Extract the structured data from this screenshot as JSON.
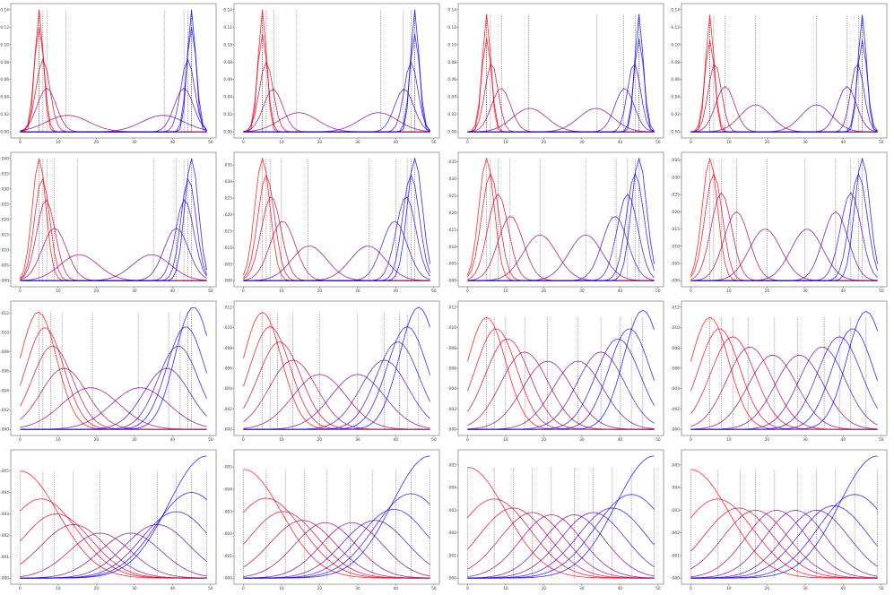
{
  "chart_data": [
    {
      "type": "line",
      "xticks": [
        "0",
        "10",
        "20",
        "30",
        "40",
        "50"
      ],
      "yticks": [
        "0.00",
        "0.02",
        "0.04",
        "0.06",
        "0.08",
        "0.10",
        "0.12",
        "0.14"
      ],
      "ylim": [
        0,
        0.14
      ],
      "means": [
        5,
        5,
        6,
        7,
        12.5,
        37.5,
        43,
        44,
        45,
        45
      ],
      "sigmas": [
        1.1,
        1.3,
        1.8,
        2.5,
        5.5,
        5.5,
        2.5,
        1.8,
        1.3,
        1.1
      ],
      "peaks": [
        0.14,
        0.12,
        0.083,
        0.05,
        0.019,
        0.019,
        0.05,
        0.083,
        0.12,
        0.14
      ],
      "vlines": [
        5,
        5,
        6,
        7,
        12,
        38,
        43,
        44,
        45,
        45
      ]
    },
    {
      "type": "line",
      "xticks": [
        "0",
        "10",
        "20",
        "30",
        "40",
        "50"
      ],
      "yticks": [
        "0.00",
        "0.02",
        "0.04",
        "0.06",
        "0.08",
        "0.10",
        "0.12",
        "0.14"
      ],
      "ylim": [
        0,
        0.14
      ],
      "means": [
        5,
        5,
        6,
        7.8,
        14.5,
        35.5,
        42.2,
        44,
        45,
        45
      ],
      "sigmas": [
        1.1,
        1.3,
        1.8,
        2.5,
        5,
        5,
        2.5,
        1.8,
        1.3,
        1.1
      ],
      "peaks": [
        0.14,
        0.112,
        0.08,
        0.049,
        0.022,
        0.022,
        0.049,
        0.08,
        0.112,
        0.14
      ],
      "vlines": [
        5,
        5,
        6,
        8,
        14,
        36,
        42,
        44,
        45,
        45
      ]
    },
    {
      "type": "line",
      "xticks": [
        "0",
        "10",
        "20",
        "30",
        "40",
        "50"
      ],
      "yticks": [
        "0.00",
        "0.02",
        "0.04",
        "0.06",
        "0.08",
        "0.10",
        "0.12",
        "0.14"
      ],
      "ylim": [
        0,
        0.14
      ],
      "means": [
        5,
        5,
        6.3,
        8.8,
        16.3,
        33.7,
        41.2,
        43.7,
        45,
        45
      ],
      "sigmas": [
        1.1,
        1.3,
        1.7,
        2.5,
        4.5,
        4.5,
        2.5,
        1.7,
        1.3,
        1.1
      ],
      "peaks": [
        0.135,
        0.107,
        0.079,
        0.05,
        0.027,
        0.027,
        0.05,
        0.079,
        0.107,
        0.135
      ],
      "vlines": [
        5,
        5,
        6,
        9,
        16,
        34,
        41,
        44,
        45,
        45
      ]
    },
    {
      "type": "line",
      "xticks": [
        "0",
        "10",
        "20",
        "30",
        "40",
        "50"
      ],
      "yticks": [
        "0.00",
        "0.02",
        "0.04",
        "0.06",
        "0.08",
        "0.10",
        "0.12",
        "0.14"
      ],
      "ylim": [
        0,
        0.14
      ],
      "means": [
        5,
        5,
        6.3,
        9,
        17,
        33,
        41,
        43.7,
        45,
        45
      ],
      "sigmas": [
        1.1,
        1.3,
        1.7,
        2.5,
        4,
        4,
        2.5,
        1.7,
        1.3,
        1.1
      ],
      "peaks": [
        0.134,
        0.105,
        0.079,
        0.052,
        0.031,
        0.031,
        0.052,
        0.079,
        0.105,
        0.134
      ],
      "vlines": [
        5,
        5,
        6,
        9,
        17,
        33,
        41,
        44,
        45,
        45
      ]
    },
    {
      "type": "line",
      "xticks": [
        "0",
        "10",
        "20",
        "30",
        "40",
        "50"
      ],
      "yticks": [
        "0.000",
        "0.005",
        "0.010",
        "0.015",
        "0.020",
        "0.025",
        "0.030",
        "0.035",
        "0.040"
      ],
      "ylim": [
        0,
        0.04
      ],
      "means": [
        5,
        5.8,
        6.8,
        9,
        15.5,
        34.5,
        41,
        43.2,
        44.2,
        45
      ],
      "sigmas": [
        1.8,
        2,
        2.4,
        3.2,
        5,
        5,
        3.2,
        2.4,
        2,
        1.8
      ],
      "peaks": [
        0.04,
        0.0335,
        0.0265,
        0.0172,
        0.0085,
        0.0085,
        0.0172,
        0.0265,
        0.0335,
        0.04
      ],
      "vlines": [
        5,
        6,
        7,
        9,
        15,
        35,
        41,
        43,
        44,
        45
      ]
    },
    {
      "type": "line",
      "xticks": [
        "0",
        "10",
        "20",
        "30",
        "40",
        "50"
      ],
      "yticks": [
        "0.000",
        "0.005",
        "0.010",
        "0.015",
        "0.020",
        "0.025",
        "0.030",
        "0.035"
      ],
      "ylim": [
        0,
        0.035
      ],
      "means": [
        5,
        6,
        7.3,
        10.3,
        17.3,
        32.7,
        39.7,
        42.7,
        44,
        45
      ],
      "sigmas": [
        2,
        2.2,
        2.6,
        3.3,
        4.6,
        4.6,
        3.3,
        2.6,
        2.2,
        2
      ],
      "peaks": [
        0.037,
        0.032,
        0.0255,
        0.018,
        0.0105,
        0.0105,
        0.018,
        0.0255,
        0.032,
        0.037
      ],
      "vlines": [
        5,
        6,
        7,
        10,
        17,
        33,
        40,
        43,
        44,
        45
      ]
    },
    {
      "type": "line",
      "xticks": [
        "0",
        "10",
        "20",
        "30",
        "40",
        "50"
      ],
      "yticks": [
        "0.000",
        "0.005",
        "0.010",
        "0.015",
        "0.020",
        "0.025",
        "0.030",
        "0.035"
      ],
      "ylim": [
        0,
        0.035
      ],
      "means": [
        5,
        6,
        8,
        11.3,
        19,
        31,
        38.7,
        42,
        44,
        45
      ],
      "sigmas": [
        2,
        2.3,
        2.7,
        3.3,
        4.4,
        4.4,
        3.3,
        2.7,
        2.3,
        2
      ],
      "peaks": [
        0.036,
        0.0315,
        0.0255,
        0.019,
        0.0135,
        0.0135,
        0.019,
        0.0255,
        0.0315,
        0.036
      ],
      "vlines": [
        5,
        6,
        8,
        11,
        19,
        31,
        39,
        42,
        44,
        45
      ]
    },
    {
      "type": "line",
      "xticks": [
        "0",
        "10",
        "20",
        "30",
        "40",
        "50"
      ],
      "yticks": [
        "0.000",
        "0.005",
        "0.010",
        "0.015",
        "0.020",
        "0.025",
        "0.030",
        "0.035"
      ],
      "ylim": [
        0,
        0.035
      ],
      "means": [
        5,
        6,
        8,
        12,
        19.5,
        30.5,
        38,
        42,
        44,
        45
      ],
      "sigmas": [
        2,
        2.3,
        2.7,
        3.3,
        4.2,
        4.2,
        3.3,
        2.7,
        2.3,
        2
      ],
      "peaks": [
        0.0355,
        0.031,
        0.0255,
        0.02,
        0.015,
        0.015,
        0.02,
        0.0255,
        0.031,
        0.0355
      ],
      "vlines": [
        5,
        6,
        8,
        12,
        20,
        30,
        38,
        42,
        44,
        45
      ]
    },
    {
      "type": "line",
      "xticks": [
        "0",
        "10",
        "20",
        "30",
        "40",
        "50"
      ],
      "yticks": [
        "0.000",
        "0.002",
        "0.004",
        "0.006",
        "0.008",
        "0.010",
        "0.012"
      ],
      "ylim": [
        0,
        0.012
      ],
      "means": [
        4.8,
        6.5,
        8.5,
        11.5,
        18.5,
        31.5,
        38.5,
        41.5,
        43.5,
        45.5
      ],
      "sigmas": [
        4.8,
        5,
        5.3,
        6,
        7.5,
        7.5,
        6,
        5.3,
        5,
        4.8
      ],
      "peaks": [
        0.0121,
        0.0105,
        0.0086,
        0.0063,
        0.0043,
        0.0043,
        0.0063,
        0.0086,
        0.0106,
        0.0126
      ],
      "vlines": [
        5,
        6,
        8,
        11,
        19,
        31,
        39,
        42,
        44,
        45
      ]
    },
    {
      "type": "line",
      "xticks": [
        "0",
        "10",
        "20",
        "30",
        "40",
        "50"
      ],
      "yticks": [
        "0.000",
        "0.002",
        "0.004",
        "0.006",
        "0.008",
        "0.010",
        "0.012"
      ],
      "ylim": [
        0,
        0.012
      ],
      "means": [
        5,
        7,
        9.5,
        13,
        20,
        30,
        37,
        40.5,
        43,
        46
      ],
      "sigmas": [
        5,
        5.3,
        5.6,
        6.2,
        7,
        7,
        6.2,
        5.6,
        5.3,
        5
      ],
      "peaks": [
        0.0115,
        0.0101,
        0.0086,
        0.0068,
        0.0054,
        0.0054,
        0.0068,
        0.0086,
        0.0101,
        0.012
      ],
      "vlines": [
        5,
        7,
        9,
        13,
        20,
        30,
        37,
        41,
        43,
        46
      ]
    },
    {
      "type": "line",
      "xticks": [
        "0",
        "10",
        "20",
        "30",
        "40",
        "50"
      ],
      "yticks": [
        "0.000",
        "0.002",
        "0.004",
        "0.006",
        "0.008",
        "0.010",
        "0.012"
      ],
      "ylim": [
        0,
        0.012
      ],
      "means": [
        5,
        7.5,
        10.5,
        15,
        21,
        29,
        35,
        39.5,
        42.5,
        46
      ],
      "sigmas": [
        5,
        5.4,
        5.8,
        6.2,
        6.5,
        6.5,
        6.2,
        5.8,
        5.4,
        5
      ],
      "peaks": [
        0.011,
        0.0099,
        0.0089,
        0.0076,
        0.0067,
        0.0067,
        0.0076,
        0.0089,
        0.0099,
        0.0117
      ],
      "vlines": [
        5,
        7,
        10,
        15,
        21,
        29,
        35,
        40,
        43,
        46
      ]
    },
    {
      "type": "line",
      "xticks": [
        "0",
        "10",
        "20",
        "30",
        "40",
        "50"
      ],
      "yticks": [
        "0.000",
        "0.002",
        "0.004",
        "0.006",
        "0.008",
        "0.010",
        "0.012"
      ],
      "ylim": [
        0,
        0.012
      ],
      "means": [
        5,
        7.5,
        11,
        15.5,
        21.5,
        28.5,
        34.5,
        39,
        42.5,
        46
      ],
      "sigmas": [
        5,
        5.4,
        5.8,
        6,
        6.3,
        6.3,
        6,
        5.8,
        5.4,
        5
      ],
      "peaks": [
        0.011,
        0.0099,
        0.0091,
        0.0081,
        0.0073,
        0.0073,
        0.0081,
        0.0091,
        0.0099,
        0.0116
      ],
      "vlines": [
        5,
        8,
        11,
        15,
        22,
        28,
        35,
        39,
        42,
        46
      ]
    },
    {
      "type": "line",
      "xticks": [
        "0",
        "10",
        "20",
        "30",
        "40",
        "50"
      ],
      "yticks": [
        "0.000",
        "0.001",
        "0.002",
        "0.003",
        "0.004",
        "0.005"
      ],
      "ylim": [
        0,
        0.0057
      ],
      "means": [
        0,
        5.5,
        9.5,
        14,
        21,
        29,
        36,
        41,
        45,
        49
      ],
      "sigmas": [
        10,
        9.5,
        9,
        8.5,
        8,
        8,
        8.5,
        9,
        9.5,
        10
      ],
      "peaks": [
        0.005,
        0.0037,
        0.003,
        0.0025,
        0.0021,
        0.0021,
        0.0025,
        0.0031,
        0.004,
        0.0057
      ],
      "vlines": [
        0,
        6,
        9,
        14,
        21,
        29,
        36,
        41,
        45,
        49
      ]
    },
    {
      "type": "line",
      "xticks": [
        "0",
        "10",
        "20",
        "30",
        "40",
        "50"
      ],
      "yticks": [
        "0.000",
        "0.001",
        "0.002",
        "0.003",
        "0.004",
        "0.005"
      ],
      "ylim": [
        0,
        0.0055
      ],
      "means": [
        0,
        6,
        10.5,
        15.5,
        21.5,
        28.5,
        34.5,
        39.5,
        44,
        49
      ],
      "sigmas": [
        10,
        9.5,
        9,
        8.5,
        8,
        8,
        8.5,
        9,
        9.5,
        10
      ],
      "peaks": [
        0.0049,
        0.0036,
        0.003,
        0.0026,
        0.0025,
        0.0025,
        0.0026,
        0.0031,
        0.0038,
        0.0055
      ],
      "vlines": [
        0,
        6,
        11,
        16,
        22,
        28,
        34,
        40,
        44,
        49
      ]
    },
    {
      "type": "line",
      "xticks": [
        "0",
        "10",
        "20",
        "30",
        "40",
        "50"
      ],
      "yticks": [
        "0.000",
        "0.001",
        "0.002",
        "0.003",
        "0.004",
        "0.005"
      ],
      "ylim": [
        0,
        0.0054
      ],
      "means": [
        0,
        7,
        12,
        17,
        22,
        28,
        33,
        38,
        43,
        49
      ],
      "sigmas": [
        10,
        9.5,
        9,
        8.5,
        8,
        8,
        8.5,
        9,
        9.5,
        10
      ],
      "peaks": [
        0.0049,
        0.0035,
        0.0031,
        0.0029,
        0.0028,
        0.0028,
        0.0029,
        0.0031,
        0.0037,
        0.0054
      ],
      "vlines": [
        0,
        7,
        12,
        17,
        22,
        28,
        33,
        38,
        43,
        49
      ]
    },
    {
      "type": "line",
      "xticks": [
        "0",
        "10",
        "20",
        "30",
        "40",
        "50"
      ],
      "yticks": [
        "0.000",
        "0.001",
        "0.002",
        "0.003",
        "0.004",
        "0.005"
      ],
      "ylim": [
        0,
        0.0054
      ],
      "means": [
        0,
        7,
        12.5,
        17,
        22.5,
        27.5,
        33,
        37.5,
        43,
        49
      ],
      "sigmas": [
        10,
        9.5,
        9,
        8.5,
        8,
        8,
        8.5,
        9,
        9.5,
        10
      ],
      "peaks": [
        0.0048,
        0.0035,
        0.0031,
        0.003,
        0.003,
        0.003,
        0.003,
        0.0032,
        0.0037,
        0.0054
      ],
      "vlines": [
        0,
        7,
        13,
        17,
        22,
        28,
        33,
        38,
        43,
        49
      ]
    }
  ],
  "colors": {
    "start": "#ff0000",
    "end": "#0000ff",
    "vline": "#333333",
    "frame": "#8a8a8a"
  }
}
